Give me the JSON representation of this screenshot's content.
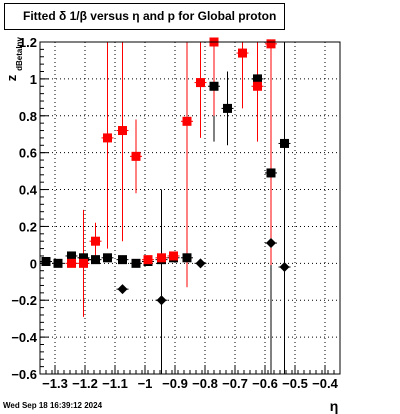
{
  "title": "Fitted δ 1/β versus η and p for Global proton",
  "timestamp": "Wed Sep 18 16:39:12 2024",
  "chart_data": {
    "type": "scatter",
    "title": "Fitted δ 1/β versus η and p for Global proton",
    "xlabel": "η",
    "ylabel_main": "z",
    "ylabel_sub": "dBetaInv",
    "xlim": [
      -1.35,
      -0.35
    ],
    "ylim": [
      -0.6,
      1.2
    ],
    "x_ticks": [
      -1.3,
      -1.2,
      -1.1,
      -1.0,
      -0.9,
      -0.8,
      -0.7,
      -0.6,
      -0.5,
      -0.4
    ],
    "x_tick_labels": [
      "−1.3",
      "−1.2",
      "−1.1",
      "−1",
      "−0.9",
      "−0.8",
      "−0.7",
      "−0.6",
      "−0.5",
      "−0.4"
    ],
    "y_ticks": [
      -0.6,
      -0.4,
      -0.2,
      0,
      0.2,
      0.4,
      0.6,
      0.8,
      1.0,
      1.2
    ],
    "y_tick_labels": [
      "−0.6",
      "−0.4",
      "−0.2",
      "0",
      "0.2",
      "0.4",
      "0.6",
      "0.8",
      "1",
      "1.2"
    ],
    "grid": true,
    "series": [
      {
        "marker": "square",
        "color": "#000000",
        "points": [
          {
            "x": -1.33,
            "y": 0.01,
            "err": 0.01
          },
          {
            "x": -1.29,
            "y": 0.0,
            "err": 0.01
          },
          {
            "x": -1.245,
            "y": 0.04,
            "err": 0.01
          },
          {
            "x": -1.205,
            "y": 0.03,
            "err": 0.01
          },
          {
            "x": -1.165,
            "y": 0.02,
            "err": 0.01
          },
          {
            "x": -1.125,
            "y": 0.03,
            "err": 0.01
          },
          {
            "x": -1.075,
            "y": 0.02,
            "err": 0.01
          },
          {
            "x": -1.03,
            "y": 0.0,
            "err": 0.01
          },
          {
            "x": -0.99,
            "y": 0.01,
            "err": 0.01
          },
          {
            "x": -0.945,
            "y": 0.02,
            "err": 0.01
          },
          {
            "x": -0.905,
            "y": 0.03,
            "err": 0.01
          },
          {
            "x": -0.86,
            "y": 0.03,
            "err": 0.01
          },
          {
            "x": -0.77,
            "y": 0.96,
            "err": 0.3
          },
          {
            "x": -0.725,
            "y": 0.84,
            "err": 0.2
          },
          {
            "x": -0.625,
            "y": 1.0,
            "err": 0.3
          },
          {
            "x": -0.58,
            "y": 0.49,
            "err": 1.2
          },
          {
            "x": -0.535,
            "y": 0.65,
            "err": 1.3
          }
        ]
      },
      {
        "marker": "diamond",
        "color": "#000000",
        "points": [
          {
            "x": -1.2,
            "y": 0.02,
            "err": 0.01
          },
          {
            "x": -1.075,
            "y": -0.14,
            "err": 0.01
          },
          {
            "x": -0.945,
            "y": -0.2,
            "err": 0.6
          },
          {
            "x": -0.815,
            "y": 0.0,
            "err": 0.01
          },
          {
            "x": -0.58,
            "y": 0.11,
            "err": 1.0
          },
          {
            "x": -0.535,
            "y": -0.02,
            "err": 1.0
          }
        ]
      },
      {
        "marker": "square",
        "color": "#ff0000",
        "points": [
          {
            "x": -1.245,
            "y": 0.0,
            "err": 0.01
          },
          {
            "x": -1.205,
            "y": 0.0,
            "err": 0.29
          },
          {
            "x": -1.165,
            "y": 0.12,
            "err": 0.1
          },
          {
            "x": -1.125,
            "y": 0.68,
            "err": 0.6
          },
          {
            "x": -1.075,
            "y": 0.72,
            "err": 0.6
          },
          {
            "x": -1.03,
            "y": 0.58,
            "err": 0.2
          },
          {
            "x": -0.99,
            "y": 0.02,
            "err": 0.01
          },
          {
            "x": -0.945,
            "y": 0.03,
            "err": 0.01
          },
          {
            "x": -0.905,
            "y": 0.04,
            "err": 0.01
          },
          {
            "x": -0.86,
            "y": 0.77,
            "err": 0.9
          },
          {
            "x": -0.815,
            "y": 0.98,
            "err": 0.3
          },
          {
            "x": -0.77,
            "y": 1.2,
            "err": 0.4
          },
          {
            "x": -0.675,
            "y": 1.14,
            "err": 0.3
          },
          {
            "x": -0.625,
            "y": 0.96,
            "err": 0.3
          },
          {
            "x": -0.58,
            "y": 1.19,
            "err": 1.2
          }
        ]
      }
    ]
  }
}
